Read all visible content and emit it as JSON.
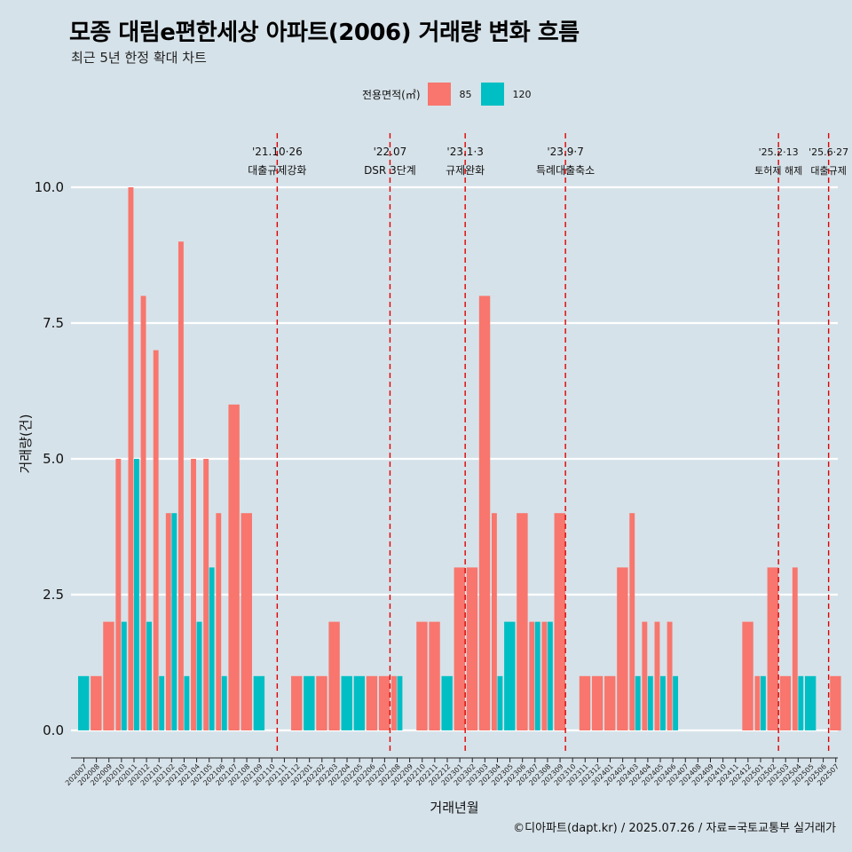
{
  "title": "모종 대림e편한세상 아파트(2006) 거래량 변화 흐름",
  "subtitle": "최근 5년 한정 확대 차트",
  "caption": "©디아파트(dapt.kr) / 2025.07.26 / 자료=국토교통부 실거래가",
  "legend": {
    "title": "전용면적(㎡)",
    "items": [
      {
        "label": "85",
        "color": "#f8766d"
      },
      {
        "label": "120",
        "color": "#00bfc4"
      }
    ]
  },
  "chart_data": {
    "type": "bar",
    "title": "모종 대림e편한세상 아파트(2006) 거래량 변화 흐름",
    "xlabel": "거래년월",
    "ylabel": "거래량(건)",
    "ylim": [
      0,
      10
    ],
    "yticks": [
      "0.0",
      "2.5",
      "5.0",
      "7.5",
      "10.0"
    ],
    "categories": [
      "202007",
      "202008",
      "202009",
      "202010",
      "202011",
      "202012",
      "202101",
      "202102",
      "202103",
      "202104",
      "202105",
      "202106",
      "202107",
      "202108",
      "202109",
      "202110",
      "202111",
      "202112",
      "202201",
      "202202",
      "202203",
      "202204",
      "202205",
      "202206",
      "202207",
      "202208",
      "202209",
      "202210",
      "202211",
      "202212",
      "202301",
      "202302",
      "202303",
      "202304",
      "202305",
      "202306",
      "202307",
      "202308",
      "202309",
      "202310",
      "202311",
      "202312",
      "202401",
      "202402",
      "202403",
      "202404",
      "202405",
      "202406",
      "202407",
      "202408",
      "202409",
      "202410",
      "202411",
      "202412",
      "202501",
      "202502",
      "202503",
      "202504",
      "202505",
      "202506",
      "202507"
    ],
    "series": [
      {
        "name": "85",
        "color": "#f8766d",
        "values": [
          0,
          1,
          2,
          5,
          10,
          8,
          7,
          4,
          9,
          5,
          5,
          4,
          6,
          4,
          0,
          0,
          0,
          1,
          0,
          1,
          2,
          0,
          0,
          1,
          1,
          1,
          0,
          2,
          2,
          0,
          3,
          3,
          8,
          4,
          0,
          4,
          2,
          2,
          4,
          0,
          1,
          1,
          1,
          3,
          4,
          2,
          2,
          2,
          0,
          0,
          0,
          0,
          0,
          2,
          1,
          3,
          1,
          3,
          0,
          0,
          1
        ]
      },
      {
        "name": "120",
        "color": "#00bfc4",
        "values": [
          1,
          0,
          0,
          2,
          5,
          2,
          1,
          4,
          1,
          2,
          3,
          1,
          0,
          0,
          1,
          0,
          0,
          0,
          1,
          0,
          0,
          1,
          1,
          0,
          0,
          1,
          0,
          0,
          0,
          1,
          0,
          0,
          0,
          1,
          2,
          0,
          2,
          2,
          0,
          0,
          0,
          0,
          0,
          0,
          1,
          1,
          1,
          1,
          0,
          0,
          0,
          0,
          0,
          0,
          1,
          0,
          0,
          1,
          1,
          0,
          0
        ]
      }
    ],
    "annotations": [
      {
        "index": 15.5,
        "date": "'21.10·26",
        "label": "대출규제강화"
      },
      {
        "index": 24.5,
        "date": "'22.07",
        "label": "DSR 3단계"
      },
      {
        "index": 30.5,
        "date": "'23.1·3",
        "label": "규제완화"
      },
      {
        "index": 38.5,
        "date": "'23.9·7",
        "label": "특례대출축소"
      },
      {
        "index": 55.5,
        "date": "'25.2·13",
        "label": "토허제 해제"
      },
      {
        "index": 59.5,
        "date": "'25.6·27",
        "label": "대출규제"
      }
    ]
  }
}
